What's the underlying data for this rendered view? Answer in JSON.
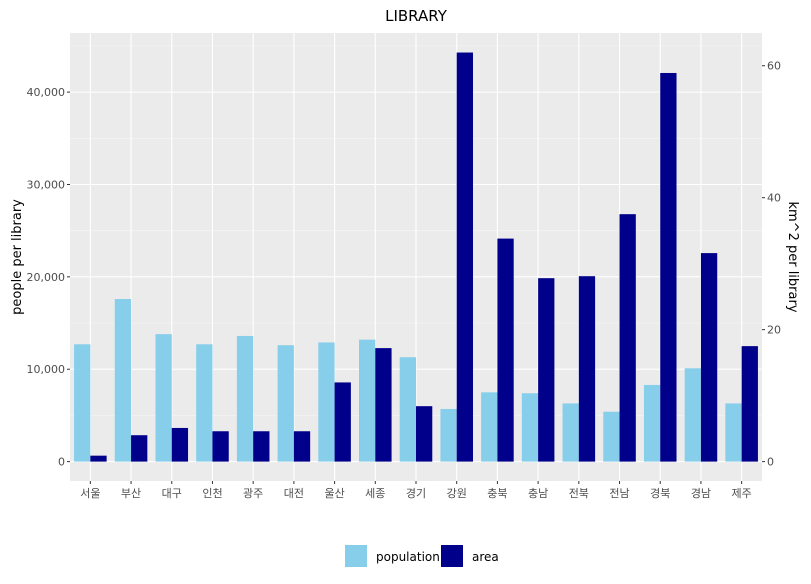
{
  "chart_data": {
    "type": "bar",
    "title": "LIBRARY",
    "categories": [
      "서울",
      "부산",
      "대구",
      "인천",
      "광주",
      "대전",
      "울산",
      "세종",
      "경기",
      "강원",
      "충북",
      "충남",
      "전북",
      "전남",
      "경북",
      "경남",
      "제주"
    ],
    "series": [
      {
        "name": "population",
        "axis": "left",
        "color": "#87CEEB",
        "values": [
          12700,
          17600,
          13800,
          12700,
          13600,
          12600,
          12900,
          13200,
          11300,
          5700,
          7500,
          7400,
          6300,
          5400,
          8300,
          10100,
          6300
        ]
      },
      {
        "name": "area",
        "axis": "right",
        "color": "#00008B",
        "values": [
          0.9,
          4.0,
          5.1,
          4.6,
          4.6,
          4.6,
          12.0,
          17.2,
          8.4,
          62.0,
          33.8,
          27.8,
          28.1,
          37.5,
          58.9,
          31.6,
          17.5
        ]
      }
    ],
    "y_left": {
      "label": "people per library",
      "ticks": [
        0,
        10000,
        20000,
        30000,
        40000
      ],
      "tick_labels": [
        "0",
        "10,000",
        "20,000",
        "30,000",
        "40,000"
      ],
      "lim": [
        -2100,
        46400
      ]
    },
    "y_right": {
      "label": "km^2 per library",
      "ticks": [
        0,
        20,
        40,
        60
      ],
      "tick_labels": [
        "0",
        "20",
        "40",
        "60"
      ],
      "lim": [
        -2.94,
        64.96
      ]
    },
    "grid": true,
    "legend_position": "bottom"
  }
}
